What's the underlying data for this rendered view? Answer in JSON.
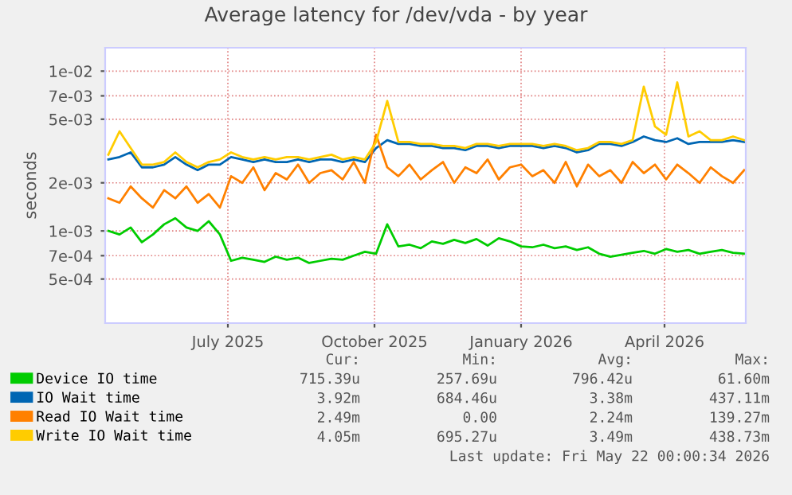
{
  "chart_data": {
    "type": "line",
    "title": "Average latency for /dev/vda - by year",
    "ylabel": "seconds",
    "log": "y",
    "grid": true,
    "legend": "bottom",
    "marker": "none",
    "line_style": "solid",
    "ylim": [
      0.000265,
      0.014
    ],
    "yticks": [
      {
        "value": 0.01,
        "label": "1e-02"
      },
      {
        "value": 0.007,
        "label": "7e-03"
      },
      {
        "value": 0.005,
        "label": "5e-03"
      },
      {
        "value": 0.002,
        "label": "2e-03"
      },
      {
        "value": 0.001,
        "label": "1e-03"
      },
      {
        "value": 0.0007,
        "label": "7e-04"
      },
      {
        "value": 0.0005,
        "label": "5e-04"
      }
    ],
    "xlim": [
      "2025-04-15",
      "2026-05-22"
    ],
    "xticks": [
      {
        "value": "2025-07-01",
        "label": "July 2025"
      },
      {
        "value": "2025-10-01",
        "label": "October 2025"
      },
      {
        "value": "2026-01-01",
        "label": "January 2026"
      },
      {
        "value": "2026-04-01",
        "label": "April 2026"
      }
    ],
    "x": [
      "2025-04-17",
      "2025-04-24",
      "2025-05-01",
      "2025-05-08",
      "2025-05-15",
      "2025-05-22",
      "2025-05-29",
      "2025-06-05",
      "2025-06-12",
      "2025-06-19",
      "2025-06-26",
      "2025-07-03",
      "2025-07-10",
      "2025-07-17",
      "2025-07-24",
      "2025-07-31",
      "2025-08-07",
      "2025-08-14",
      "2025-08-21",
      "2025-08-28",
      "2025-09-04",
      "2025-09-11",
      "2025-09-18",
      "2025-09-25",
      "2025-10-02",
      "2025-10-09",
      "2025-10-16",
      "2025-10-23",
      "2025-10-30",
      "2025-11-06",
      "2025-11-13",
      "2025-11-20",
      "2025-11-27",
      "2025-12-04",
      "2025-12-11",
      "2025-12-18",
      "2025-12-25",
      "2026-01-01",
      "2026-01-08",
      "2026-01-15",
      "2026-01-22",
      "2026-01-29",
      "2026-02-05",
      "2026-02-12",
      "2026-02-19",
      "2026-02-26",
      "2026-03-05",
      "2026-03-12",
      "2026-03-19",
      "2026-03-26",
      "2026-04-02",
      "2026-04-09",
      "2026-04-16",
      "2026-04-23",
      "2026-04-30",
      "2026-05-07",
      "2026-05-14",
      "2026-05-21"
    ],
    "series": [
      {
        "name": "Device IO time",
        "color": "#00cc00",
        "values": [
          0.001,
          0.00095,
          0.00105,
          0.00085,
          0.00095,
          0.0011,
          0.0012,
          0.00105,
          0.001,
          0.00115,
          0.00095,
          0.00065,
          0.00068,
          0.00066,
          0.00064,
          0.00069,
          0.00066,
          0.00068,
          0.00063,
          0.00065,
          0.00067,
          0.00066,
          0.0007,
          0.00074,
          0.00072,
          0.0011,
          0.0008,
          0.00082,
          0.00078,
          0.00086,
          0.00083,
          0.00088,
          0.00084,
          0.00089,
          0.00081,
          0.0009,
          0.00086,
          0.0008,
          0.00079,
          0.00082,
          0.00078,
          0.0008,
          0.00076,
          0.00079,
          0.00072,
          0.00069,
          0.00071,
          0.00073,
          0.00075,
          0.00072,
          0.00077,
          0.00074,
          0.00076,
          0.00072,
          0.00074,
          0.00076,
          0.00073,
          0.00072
        ]
      },
      {
        "name": "IO Wait time",
        "color": "#0066b3",
        "values": [
          0.0028,
          0.0029,
          0.0031,
          0.0025,
          0.0025,
          0.0026,
          0.0029,
          0.0026,
          0.0024,
          0.0026,
          0.0026,
          0.0029,
          0.0028,
          0.0027,
          0.0028,
          0.0027,
          0.0027,
          0.0028,
          0.0027,
          0.0028,
          0.0028,
          0.0027,
          0.0028,
          0.0027,
          0.0033,
          0.0037,
          0.0035,
          0.0035,
          0.0034,
          0.0034,
          0.0033,
          0.0033,
          0.0032,
          0.0034,
          0.0034,
          0.0033,
          0.0034,
          0.0034,
          0.0034,
          0.0033,
          0.0034,
          0.0033,
          0.0031,
          0.0032,
          0.0035,
          0.0035,
          0.0034,
          0.0036,
          0.0039,
          0.0037,
          0.0036,
          0.0038,
          0.0035,
          0.0036,
          0.0036,
          0.0036,
          0.0037,
          0.0036
        ]
      },
      {
        "name": "Read IO Wait time",
        "color": "#ff8000",
        "values": [
          0.0016,
          0.0015,
          0.0019,
          0.0016,
          0.0014,
          0.0018,
          0.0016,
          0.0019,
          0.0015,
          0.0017,
          0.0014,
          0.0022,
          0.002,
          0.0025,
          0.0018,
          0.0023,
          0.0021,
          0.0026,
          0.002,
          0.0023,
          0.0024,
          0.0021,
          0.0027,
          0.002,
          0.004,
          0.0025,
          0.0022,
          0.0026,
          0.0021,
          0.0024,
          0.0027,
          0.002,
          0.0025,
          0.0023,
          0.0028,
          0.0021,
          0.0025,
          0.0026,
          0.0022,
          0.0024,
          0.002,
          0.0027,
          0.0019,
          0.0026,
          0.0022,
          0.0024,
          0.002,
          0.0027,
          0.0023,
          0.0026,
          0.0021,
          0.0026,
          0.0023,
          0.002,
          0.0025,
          0.0022,
          0.002,
          0.0024
        ]
      },
      {
        "name": "Write IO Wait time",
        "color": "#ffcc00",
        "values": [
          0.003,
          0.0042,
          0.0033,
          0.0026,
          0.0026,
          0.0027,
          0.0031,
          0.0027,
          0.0025,
          0.0027,
          0.0028,
          0.0031,
          0.0029,
          0.0028,
          0.0029,
          0.0028,
          0.0029,
          0.0029,
          0.0028,
          0.0029,
          0.003,
          0.0028,
          0.0029,
          0.0028,
          0.0036,
          0.0065,
          0.0036,
          0.0036,
          0.0035,
          0.0035,
          0.0034,
          0.0034,
          0.0033,
          0.0035,
          0.0035,
          0.0034,
          0.0035,
          0.0035,
          0.0035,
          0.0034,
          0.0035,
          0.0034,
          0.0032,
          0.0033,
          0.0036,
          0.0036,
          0.0035,
          0.0037,
          0.008,
          0.0045,
          0.004,
          0.0085,
          0.0039,
          0.0042,
          0.0037,
          0.0037,
          0.0039,
          0.0037
        ]
      }
    ],
    "annotations": [
      "Cur:",
      "Min:",
      "Avg:",
      "Max:",
      "715.39u",
      "257.69u",
      "796.42u",
      "61.60m",
      "3.92m",
      "684.46u",
      "3.38m",
      "437.11m",
      "2.49m",
      "0.00",
      "2.24m",
      "139.27m",
      "4.05m",
      "695.27u",
      "3.49m",
      "438.73m",
      "Last update: Fri May 22 00:00:34 2026"
    ]
  }
}
